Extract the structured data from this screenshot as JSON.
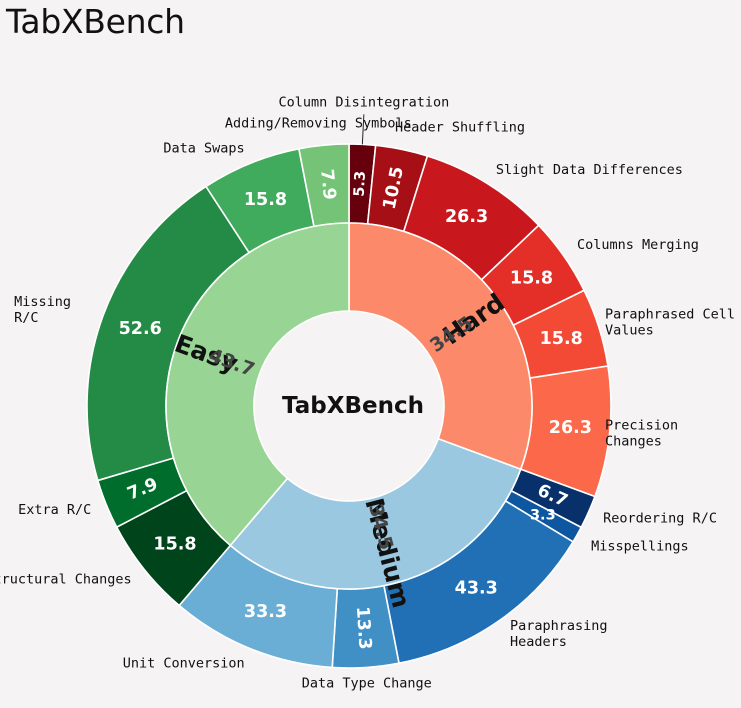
{
  "title": "TabXBench",
  "chart_data": {
    "type": "pie",
    "style": "nested-donut",
    "center_label": "TabXBench",
    "inner_ring": [
      {
        "name": "Hard",
        "value": 34.5,
        "color": "#fc8a6a"
      },
      {
        "name": "Medium",
        "value": 34.5,
        "color": "#9ac8e0"
      },
      {
        "name": "Easy",
        "value": 43.7,
        "color": "#98d594"
      }
    ],
    "outer_ring": [
      {
        "label": "Column Disintegration",
        "value_label": "5.3",
        "value": 5.3,
        "group": "Hard",
        "color": "#67000d"
      },
      {
        "label": "Header Shuffling",
        "value_label": "10.5",
        "value": 10.5,
        "group": "Hard",
        "color": "#a50f15"
      },
      {
        "label": "Slight Data Differences",
        "value_label": "26.3",
        "value": 26.3,
        "group": "Hard",
        "color": "#c9181d"
      },
      {
        "label": "Columns Merging",
        "value_label": "15.8",
        "value": 15.8,
        "group": "Hard",
        "color": "#e32f27"
      },
      {
        "label": "Paraphrased Cell\nValues",
        "value_label": "15.8",
        "value": 15.8,
        "group": "Hard",
        "color": "#f34a36"
      },
      {
        "label": "Precision\nChanges",
        "value_label": "26.3",
        "value": 26.3,
        "group": "Hard",
        "color": "#fb694a"
      },
      {
        "label": "Reordering R/C",
        "value_label": "6.7",
        "value": 6.7,
        "group": "Medium",
        "color": "#08306b"
      },
      {
        "label": "Misspellings",
        "value_label": "3.3",
        "value": 3.3,
        "group": "Medium",
        "color": "#0d56a0"
      },
      {
        "label": "Paraphrasing\nHeaders",
        "value_label": "43.3",
        "value": 43.3,
        "group": "Medium",
        "color": "#2170b5"
      },
      {
        "label": "Data Type Change",
        "value_label": "13.3",
        "value": 13.3,
        "group": "Medium",
        "color": "#4090c5"
      },
      {
        "label": "Unit Conversion",
        "value_label": "33.3",
        "value": 33.3,
        "group": "Medium",
        "color": "#6aaed6"
      },
      {
        "label": "Structural Changes",
        "value_label": "15.8",
        "value": 15.8,
        "group": "Easy",
        "color": "#00441b"
      },
      {
        "label": "Extra R/C",
        "value_label": "7.9",
        "value": 7.9,
        "group": "Easy",
        "color": "#006d2c"
      },
      {
        "label": "Missing\nR/C",
        "value_label": "52.6",
        "value": 52.6,
        "group": "Easy",
        "color": "#238b45"
      },
      {
        "label": "Data Swaps",
        "value_label": "15.8",
        "value": 15.8,
        "group": "Easy",
        "color": "#40aa5d"
      },
      {
        "label": "Adding/Removing Symbols",
        "value_label": "7.9",
        "value": 7.9,
        "group": "Easy",
        "color": "#74c376"
      }
    ]
  }
}
